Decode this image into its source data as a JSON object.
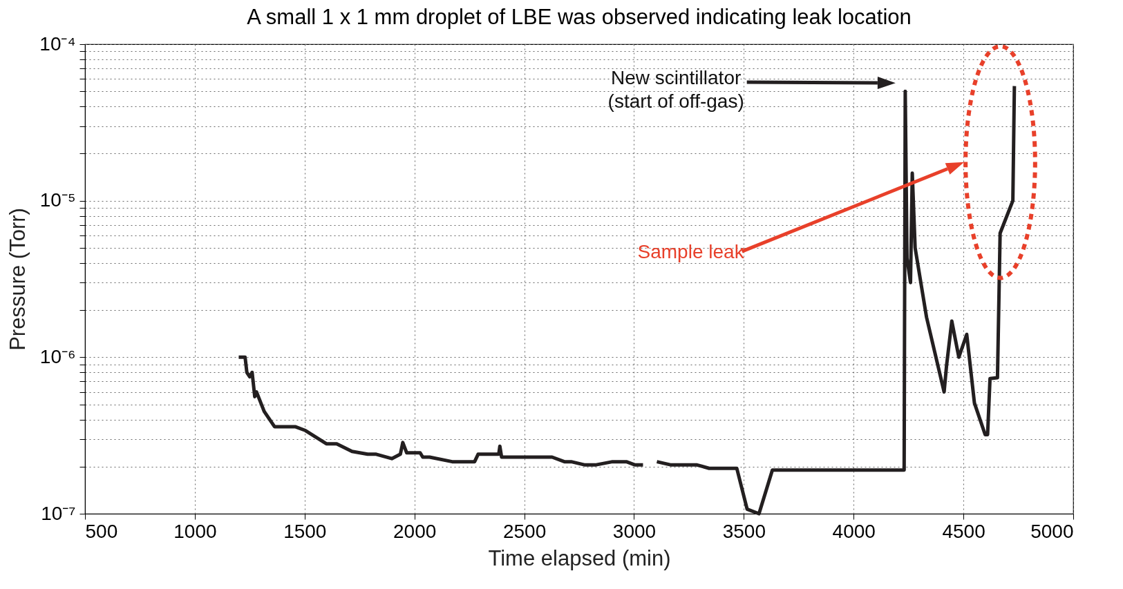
{
  "chart_data": {
    "type": "line",
    "title": "A small 1 x 1 mm droplet of LBE was observed indicating leak location",
    "xlabel": "Time elapsed (min)",
    "ylabel": "Pressure (Torr)",
    "log": true,
    "grid": true,
    "marker": "none",
    "line_style": "solid",
    "xlim": [
      500,
      5000
    ],
    "xticks": [
      500,
      1000,
      1500,
      2000,
      2500,
      3000,
      3500,
      4000,
      4500,
      5000
    ],
    "ylim": [
      1e-07,
      0.0001
    ],
    "yticks": [
      {
        "value": 1e-07,
        "label": "10⁻⁷"
      },
      {
        "value": 2e-07,
        "label": null
      },
      {
        "value": 3e-07,
        "label": null
      },
      {
        "value": 4e-07,
        "label": null
      },
      {
        "value": 5e-07,
        "label": null
      },
      {
        "value": 6e-07,
        "label": null
      },
      {
        "value": 7e-07,
        "label": null
      },
      {
        "value": 8e-07,
        "label": null
      },
      {
        "value": 9e-07,
        "label": null
      },
      {
        "value": 1e-06,
        "label": "10⁻⁶"
      },
      {
        "value": 2e-06,
        "label": null
      },
      {
        "value": 3e-06,
        "label": null
      },
      {
        "value": 4e-06,
        "label": null
      },
      {
        "value": 5e-06,
        "label": null
      },
      {
        "value": 6e-06,
        "label": null
      },
      {
        "value": 7e-06,
        "label": null
      },
      {
        "value": 8e-06,
        "label": null
      },
      {
        "value": 9e-06,
        "label": null
      },
      {
        "value": 1e-05,
        "label": "10⁻⁵"
      },
      {
        "value": 2e-05,
        "label": null
      },
      {
        "value": 3e-05,
        "label": null
      },
      {
        "value": 4e-05,
        "label": null
      },
      {
        "value": 5e-05,
        "label": null
      },
      {
        "value": 6e-05,
        "label": null
      },
      {
        "value": 7e-05,
        "label": null
      },
      {
        "value": 8e-05,
        "label": null
      },
      {
        "value": 9e-05,
        "label": null
      },
      {
        "value": 0.0001,
        "label": "10⁻⁴"
      }
    ],
    "annotations": [
      "New scintillator\n(start of off-gas)",
      "Sample leak"
    ],
    "series": [
      {
        "color": "#231f20",
        "x": [
          1200,
          1229,
          1237,
          1250,
          1261,
          1273,
          1281,
          1316,
          1363,
          1457,
          1504,
          1599,
          1646,
          1716,
          1787,
          1826,
          1897,
          1936,
          1947,
          1965,
          2026,
          2038,
          2069,
          2172,
          2274,
          2290,
          2384,
          2389,
          2397,
          2627,
          2683,
          2714,
          2777,
          2824,
          2902,
          2965,
          3005,
          3041,
          3070,
          3104,
          3169,
          3287,
          3342,
          3468,
          3515,
          3569,
          3630,
          4230,
          4235,
          4243,
          4259,
          4267,
          4280,
          4332,
          4412,
          4423,
          4447,
          4479,
          4515,
          4550,
          4599,
          4610,
          4621,
          4655,
          4667,
          4725,
          4732
        ],
        "values": [
          1e-06,
          1e-06,
          8e-07,
          7.5e-07,
          8e-07,
          5.6e-07,
          6e-07,
          4.5e-07,
          3.6e-07,
          3.6e-07,
          3.4e-07,
          2.8e-07,
          2.8e-07,
          2.5e-07,
          2.4e-07,
          2.4e-07,
          2.25e-07,
          2.4e-07,
          2.85e-07,
          2.45e-07,
          2.45e-07,
          2.3e-07,
          2.3e-07,
          2.15e-07,
          2.15e-07,
          2.4e-07,
          2.4e-07,
          2.7e-07,
          2.3e-07,
          2.3e-07,
          2.15e-07,
          2.15e-07,
          2.05e-07,
          2.05e-07,
          2.15e-07,
          2.15e-07,
          2.05e-07,
          2.05e-07,
          null,
          2.15e-07,
          2.05e-07,
          2.05e-07,
          1.95e-07,
          1.95e-07,
          1.07e-07,
          1e-07,
          1.9e-07,
          1.9e-07,
          5e-05,
          4.3e-06,
          3e-06,
          1.5e-05,
          5e-06,
          1.8e-06,
          6e-07,
          8.8e-07,
          1.7e-06,
          1e-06,
          1.4e-06,
          5.1e-07,
          3.2e-07,
          3.2e-07,
          7.3e-07,
          7.4e-07,
          6.2e-06,
          1e-05,
          5.4e-05
        ]
      }
    ]
  }
}
